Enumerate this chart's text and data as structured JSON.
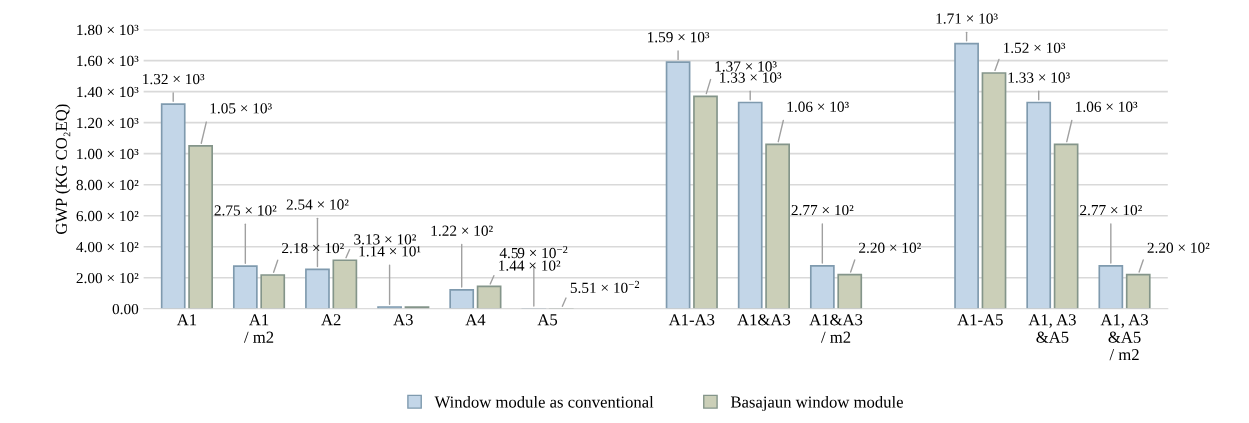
{
  "chart_data": {
    "type": "bar",
    "ylabel": "GWP (KG CO₂EQ)",
    "categories": [
      "A1",
      "A1\n/ m2",
      "A2",
      "A3",
      "A4",
      "A5",
      null,
      "A1-A3",
      "A1&A3",
      "A1&A3\n/ m2",
      null,
      "A1-A5",
      "A1, A3\n&A5",
      "A1, A3\n&A5\n/ m2"
    ],
    "series": [
      {
        "name": "Window module as conventional",
        "color": "#c3d6e8",
        "values": [
          1320,
          275,
          254,
          11.4,
          122,
          0.0459,
          null,
          1590,
          1330,
          277,
          null,
          1710,
          1330,
          277
        ],
        "value_labels": [
          "1.32 × 10³",
          "2.75 × 10²",
          "2.54 × 10²",
          "1.14 × 10¹",
          "1.22 × 10²",
          "4.59 × 10$^{−2}$",
          null,
          "1.59 × 10³",
          "1.33 × 10³",
          "2.77 × 10²",
          null,
          "1.71 × 10³",
          "1.33 × 10³",
          "2.77 × 10²"
        ]
      },
      {
        "name": "Basajaun window module",
        "color": "#cbcfb8",
        "values": [
          1050,
          218,
          313,
          11,
          144,
          0.0551,
          null,
          1370,
          1060,
          220,
          null,
          1520,
          1060,
          220
        ],
        "value_labels": [
          "1.05 × 10³",
          "2.18 × 10²",
          "3.13 × 10²",
          null,
          "1.44 × 10²",
          "5.51 × 10$^{−2}$",
          null,
          "1.37 × 10³",
          "1.06 × 10³",
          "2.20 × 10²",
          null,
          "1.52 × 10³",
          "1.06 × 10³",
          "2.20 × 10²"
        ]
      }
    ],
    "ylim": [
      0,
      1800
    ],
    "yticks": [
      {
        "value": 0,
        "label": "0.00"
      },
      {
        "value": 200,
        "label": "2.00 × 10²"
      },
      {
        "value": 400,
        "label": "4.00 × 10²"
      },
      {
        "value": 600,
        "label": "6.00 × 10²"
      },
      {
        "value": 800,
        "label": "8.00 × 10²"
      },
      {
        "value": 1000,
        "label": "1.00 × 10³"
      },
      {
        "value": 1200,
        "label": "1.20 × 10³"
      },
      {
        "value": 1400,
        "label": "1.40 × 10³"
      },
      {
        "value": 1600,
        "label": "1.60 × 10³"
      },
      {
        "value": 1800,
        "label": "1.80 × 10³"
      }
    ],
    "grid": "y",
    "legend": "bottom"
  }
}
